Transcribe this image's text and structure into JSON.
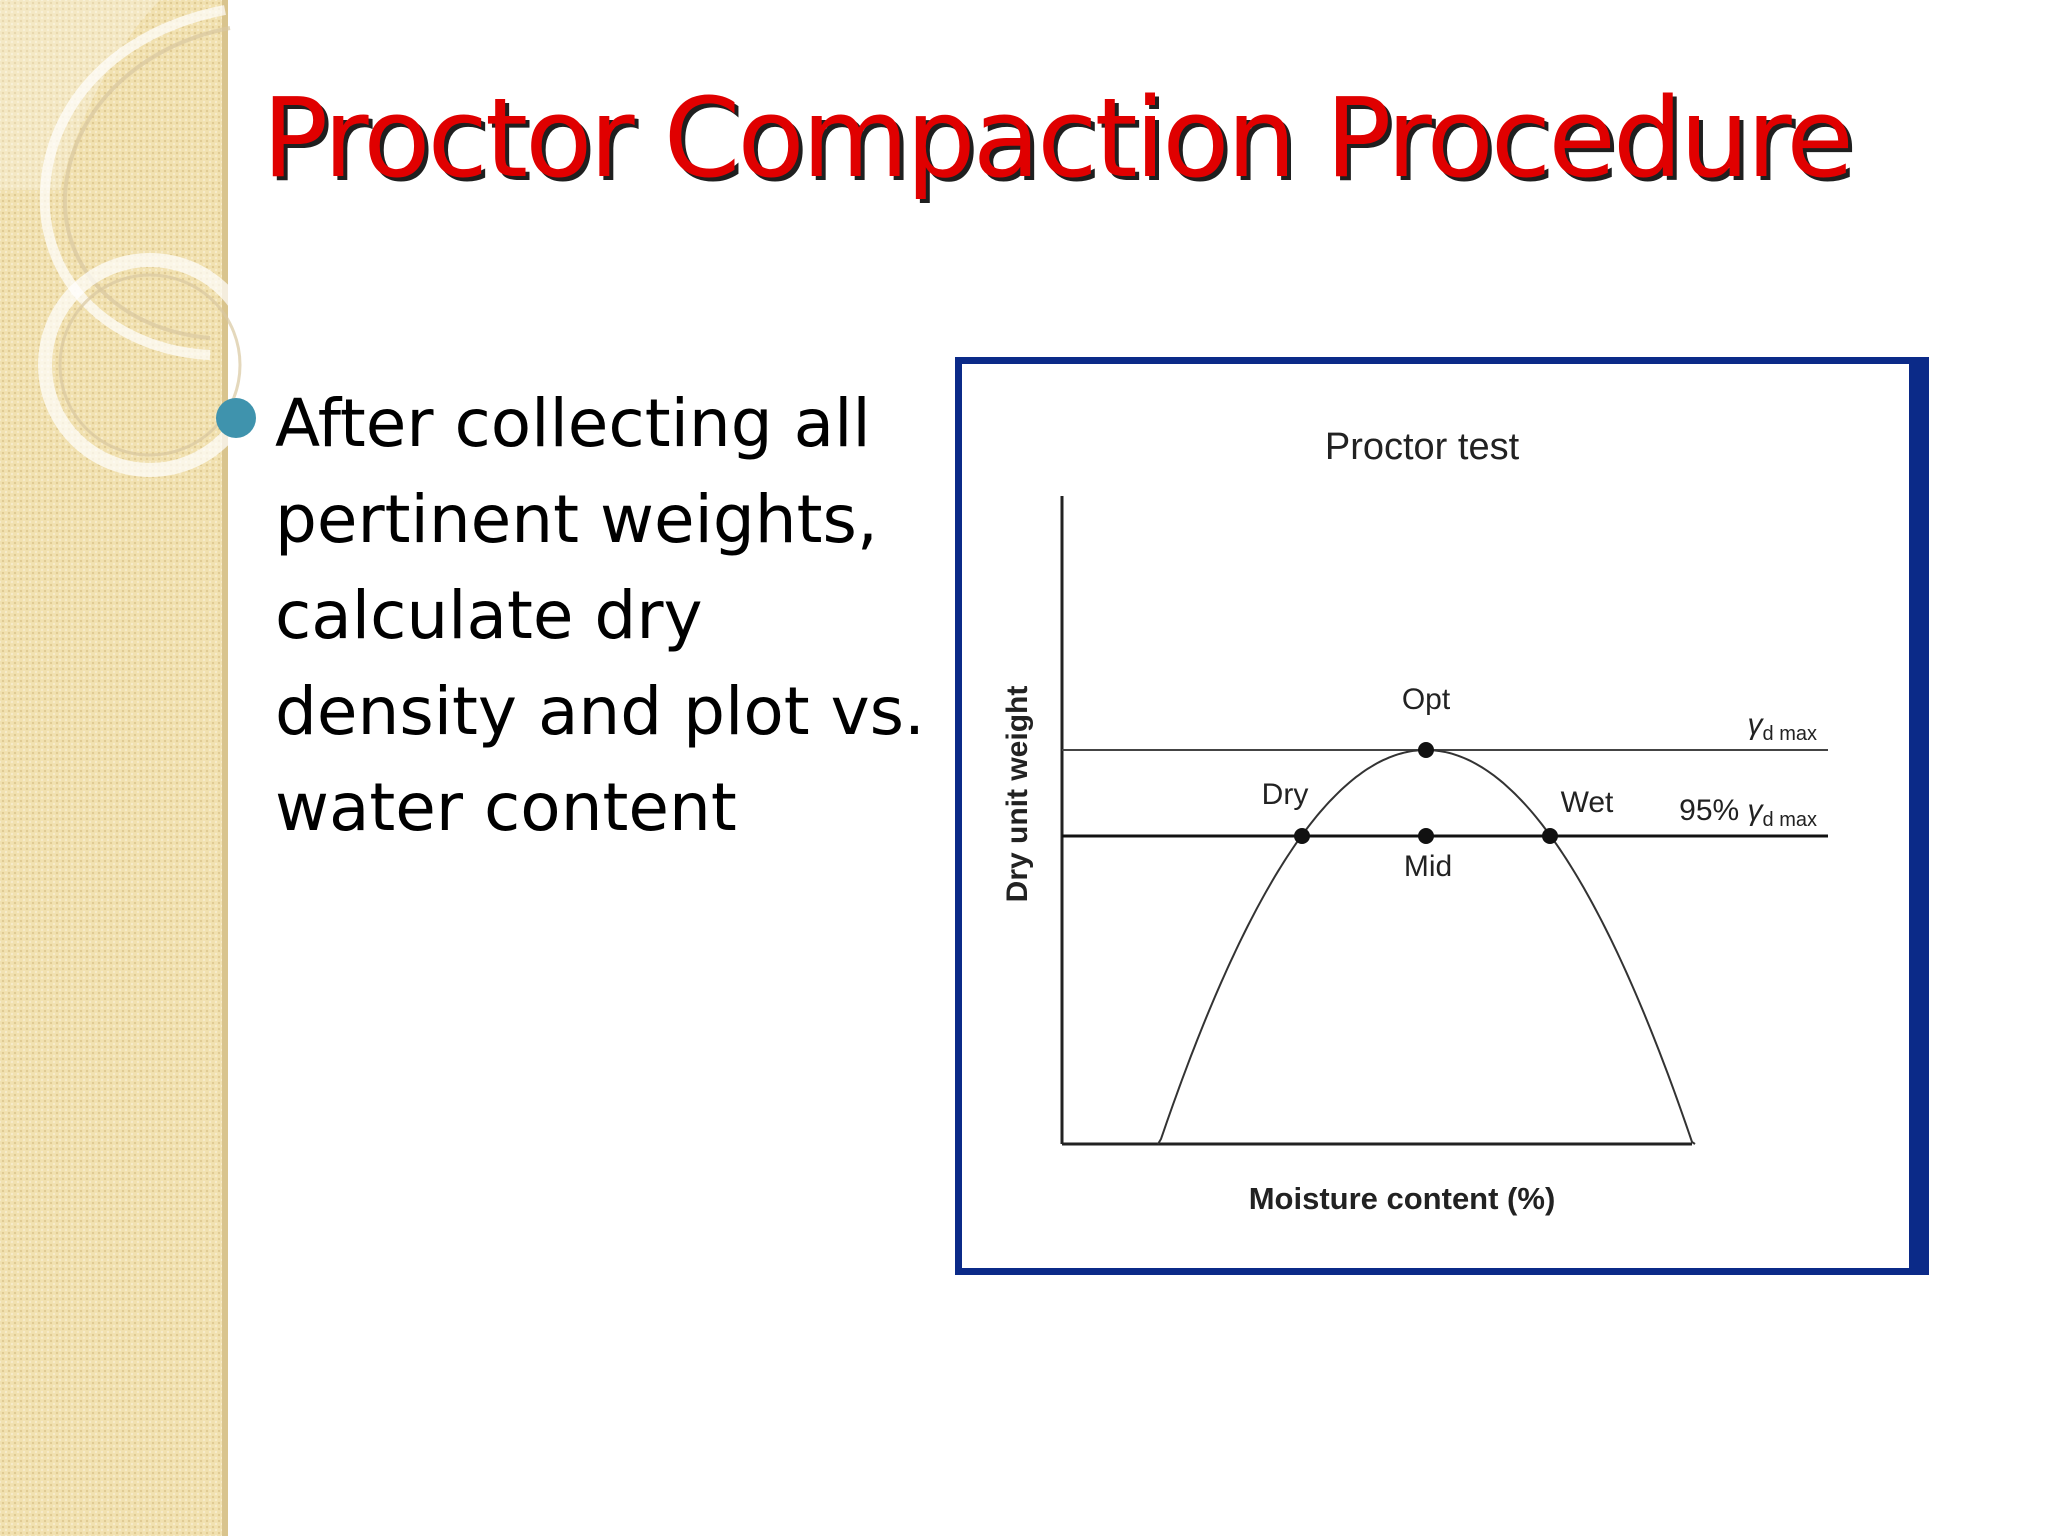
{
  "slide": {
    "title": "Proctor Compaction Procedure",
    "bullets": [
      "After collecting all pertinent weights, calculate dry density and plot vs. water content"
    ]
  },
  "colors": {
    "title_red": "#e00000",
    "bullet_teal": "#3f93ad",
    "frame_blue": "#0b2a88",
    "sidebar_tan": "#f1e1b0"
  },
  "chart_data": {
    "type": "diagram",
    "title": "Proctor test",
    "xlabel": "Moisture content (%)",
    "ylabel": "Dry unit weight",
    "curve_points": [
      {
        "name": "Dry",
        "label": "Dry"
      },
      {
        "name": "Opt",
        "label": "Opt"
      },
      {
        "name": "Mid",
        "label": "Mid"
      },
      {
        "name": "Wet",
        "label": "Wet"
      }
    ],
    "reference_lines": [
      {
        "label": "γd max",
        "symbol": "γ",
        "subscript": "d max"
      },
      {
        "label": "95% γd max",
        "prefix": "95%",
        "symbol": "γ",
        "subscript": "d max"
      }
    ]
  }
}
